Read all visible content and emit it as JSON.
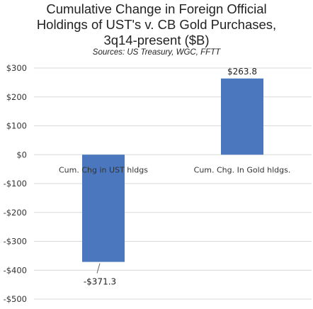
{
  "chart_data": {
    "type": "bar",
    "title_lines": [
      "Cumulative Change in Foreign Official",
      "Holdings of UST's v. CB Gold Purchases,",
      "3q14-present ($B)"
    ],
    "subtitle": "Sources:  US Treasury, WGC, FFTT",
    "categories": [
      "Cum. Chg in UST hldgs",
      "Cum. Chg. In Gold hldgs."
    ],
    "values": [
      -371.3,
      263.8
    ],
    "data_labels": [
      "-$371.3",
      "$263.8"
    ],
    "ylim": [
      -500,
      300
    ],
    "yticks": [
      300,
      200,
      100,
      0,
      -100,
      -200,
      -300,
      -400,
      -500
    ],
    "ytick_labels": [
      "$300",
      "$200",
      "$100",
      "$0",
      "-$100",
      "-$200",
      "-$300",
      "-$400",
      "-$500"
    ],
    "grid": true,
    "legend": "none",
    "bar_color": "#4a77bd",
    "grid_color": "#d9d9d9"
  }
}
